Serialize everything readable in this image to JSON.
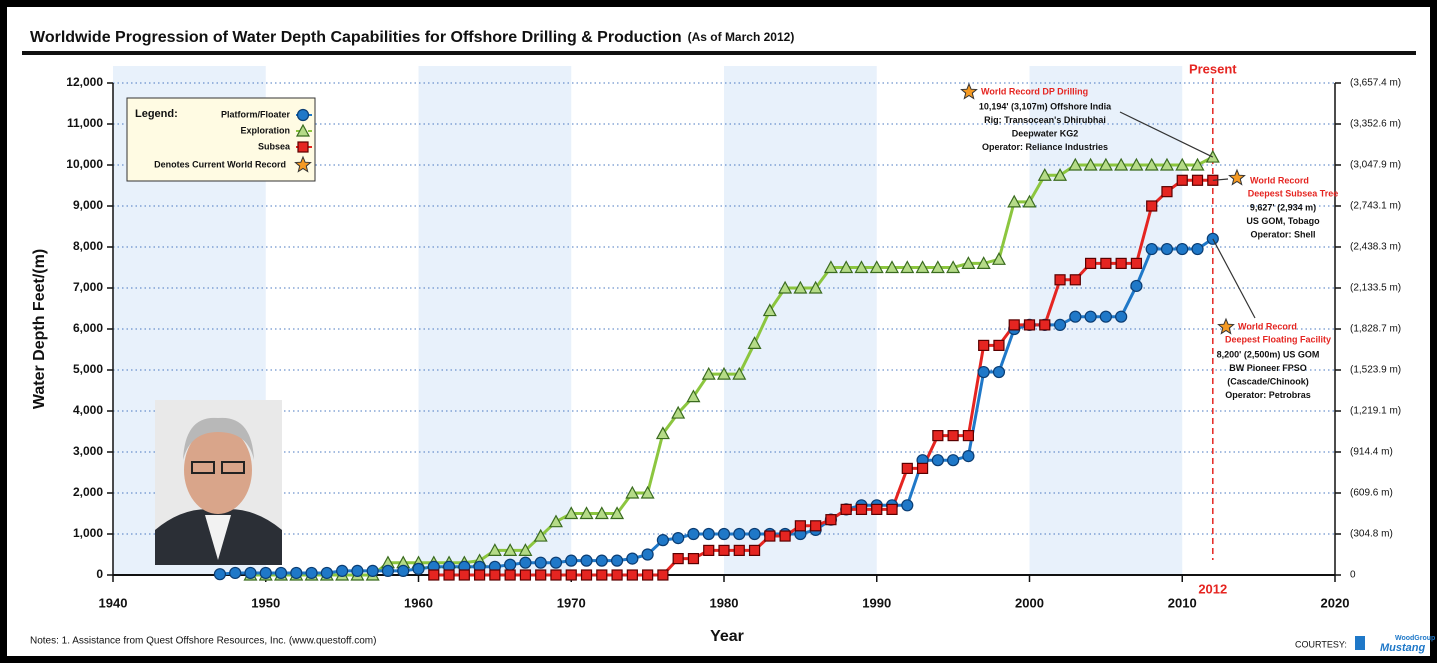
{
  "chart_data": {
    "type": "line",
    "title": "Worldwide Progression of Water Depth Capabilities for Offshore Drilling & Production",
    "subtitle": "(As of March 2012)",
    "y_label": "Water Depth Feet/(m)",
    "x_label": "Year",
    "xlim": [
      1940,
      2020
    ],
    "xticks": [
      1940,
      1950,
      1960,
      1970,
      1980,
      1990,
      2000,
      2010,
      2020
    ],
    "ylim": [
      0,
      12000
    ],
    "yticks": [
      0,
      {
        "value": 1000,
        "label": "1,000"
      },
      {
        "value": 2000,
        "label": "2,000"
      },
      {
        "value": 3000,
        "label": "3,000"
      },
      {
        "value": 4000,
        "label": "4,000"
      },
      {
        "value": 5000,
        "label": "5,000"
      },
      {
        "value": 6000,
        "label": "6,000"
      },
      {
        "value": 7000,
        "label": "7,000"
      },
      {
        "value": 8000,
        "label": "8,000"
      },
      {
        "value": 9000,
        "label": "9,000"
      },
      {
        "value": 10000,
        "label": "10,000"
      },
      {
        "value": 11000,
        "label": "11,000"
      },
      {
        "value": 12000,
        "label": "12,000"
      }
    ],
    "y2lim": [
      0,
      3657.4
    ],
    "y2ticks": [
      0,
      {
        "value": 304.8,
        "label": "(304.8 m)"
      },
      {
        "value": 609.6,
        "label": "(609.6 m)"
      },
      {
        "value": 914.4,
        "label": "(914.4 m)"
      },
      {
        "value": 1219.1,
        "label": "(1,219.1 m)"
      },
      {
        "value": 1523.9,
        "label": "(1,523.9 m)"
      },
      {
        "value": 1828.7,
        "label": "(1,828.7 m)"
      },
      {
        "value": 2133.5,
        "label": "(2,133.5 m)"
      },
      {
        "value": 2438.3,
        "label": "(2,438.3 m)"
      },
      {
        "value": 2743.1,
        "label": "(2,743.1 m)"
      },
      {
        "value": 3047.9,
        "label": "(3,047.9 m)"
      },
      {
        "value": 3352.6,
        "label": "(3,352.6 m)"
      },
      {
        "value": 3657.4,
        "label": "(3,657.4 m)"
      }
    ],
    "grid": true,
    "band_color": "#e8f1fb",
    "x": [
      1947,
      1948,
      1949,
      1950,
      1951,
      1952,
      1953,
      1954,
      1955,
      1956,
      1957,
      1958,
      1959,
      1960,
      1961,
      1962,
      1963,
      1964,
      1965,
      1966,
      1967,
      1968,
      1969,
      1970,
      1971,
      1972,
      1973,
      1974,
      1975,
      1976,
      1977,
      1978,
      1979,
      1980,
      1981,
      1982,
      1983,
      1984,
      1985,
      1986,
      1987,
      1988,
      1989,
      1990,
      1991,
      1992,
      1993,
      1994,
      1995,
      1996,
      1997,
      1998,
      1999,
      2000,
      2001,
      2002,
      2003,
      2004,
      2005,
      2006,
      2007,
      2008,
      2009,
      2010,
      2011,
      2012
    ],
    "series": [
      {
        "name": "Exploration",
        "color": "#8cc63f",
        "marker": "triangle",
        "values": [
          null,
          null,
          0,
          0,
          0,
          0,
          0,
          0,
          0,
          0,
          0,
          300,
          300,
          300,
          300,
          300,
          300,
          350,
          600,
          600,
          600,
          950,
          1300,
          1500,
          1500,
          1500,
          1500,
          2000,
          2000,
          3450,
          3950,
          4350,
          4900,
          4900,
          4900,
          5650,
          6450,
          7000,
          7000,
          7000,
          7500,
          7500,
          7500,
          7500,
          7500,
          7500,
          7500,
          7500,
          7500,
          7600,
          7600,
          7700,
          9100,
          9100,
          9750,
          9750,
          10000,
          10000,
          10000,
          10000,
          10000,
          10000,
          10000,
          10000,
          10000,
          10194
        ]
      },
      {
        "name": "Platform/Floater",
        "color": "#1f78c8",
        "marker": "circle",
        "values": [
          20,
          50,
          50,
          50,
          50,
          50,
          50,
          50,
          100,
          100,
          100,
          100,
          100,
          150,
          200,
          200,
          200,
          200,
          200,
          250,
          300,
          300,
          300,
          350,
          350,
          350,
          350,
          400,
          500,
          850,
          900,
          1000,
          1000,
          1000,
          1000,
          1000,
          1000,
          1000,
          1000,
          1100,
          1350,
          1600,
          1700,
          1700,
          1700,
          1700,
          2800,
          2800,
          2800,
          2900,
          4950,
          4950,
          6000,
          6100,
          6100,
          6100,
          6300,
          6300,
          6300,
          6300,
          7050,
          7950,
          7950,
          7950,
          7950,
          8200
        ]
      },
      {
        "name": "Subsea",
        "color": "#e52521",
        "marker": "square",
        "values": [
          null,
          null,
          null,
          null,
          null,
          null,
          null,
          null,
          null,
          null,
          null,
          null,
          null,
          null,
          0,
          0,
          0,
          0,
          0,
          0,
          0,
          0,
          0,
          0,
          0,
          0,
          0,
          0,
          0,
          0,
          400,
          400,
          600,
          600,
          600,
          600,
          950,
          950,
          1200,
          1200,
          1350,
          1600,
          1600,
          1600,
          1600,
          2600,
          2600,
          3400,
          3400,
          3400,
          5600,
          5600,
          6100,
          6100,
          6100,
          7200,
          7200,
          7600,
          7600,
          7600,
          7600,
          9000,
          9350,
          9627,
          9627,
          9627
        ]
      }
    ],
    "legend": {
      "title": "Legend:",
      "record": "Denotes Current World Record",
      "order": [
        1,
        0,
        2
      ]
    },
    "present": {
      "x": 2012,
      "label": "Present"
    },
    "annotations": [
      {
        "heading": [
          "World Record DP Drilling"
        ],
        "lines": [
          "10,194' (3,107m) Offshore India",
          "Rig: Transocean's Dhirubhai",
          "Deepwater KG2",
          "Operator: Reliance Industries"
        ]
      },
      {
        "heading": [
          "World Record",
          "Deepest Subsea Tree"
        ],
        "lines": [
          "9,627' (2,934 m)",
          "US GOM, Tobago",
          "Operator: Shell"
        ]
      },
      {
        "heading": [
          "World Record",
          "Deepest Floating Facility"
        ],
        "lines": [
          "8,200' (2,500m) US GOM",
          "BW Pioneer FPSO",
          "(Cascade/Chinook)",
          "Operator: Petrobras"
        ]
      }
    ],
    "notes": "Notes: 1. Assistance from Quest Offshore Resources, Inc. (www.questoff.com)",
    "courtesy": "COURTESY:",
    "logo": [
      "WoodGroup",
      "Mustang"
    ]
  }
}
